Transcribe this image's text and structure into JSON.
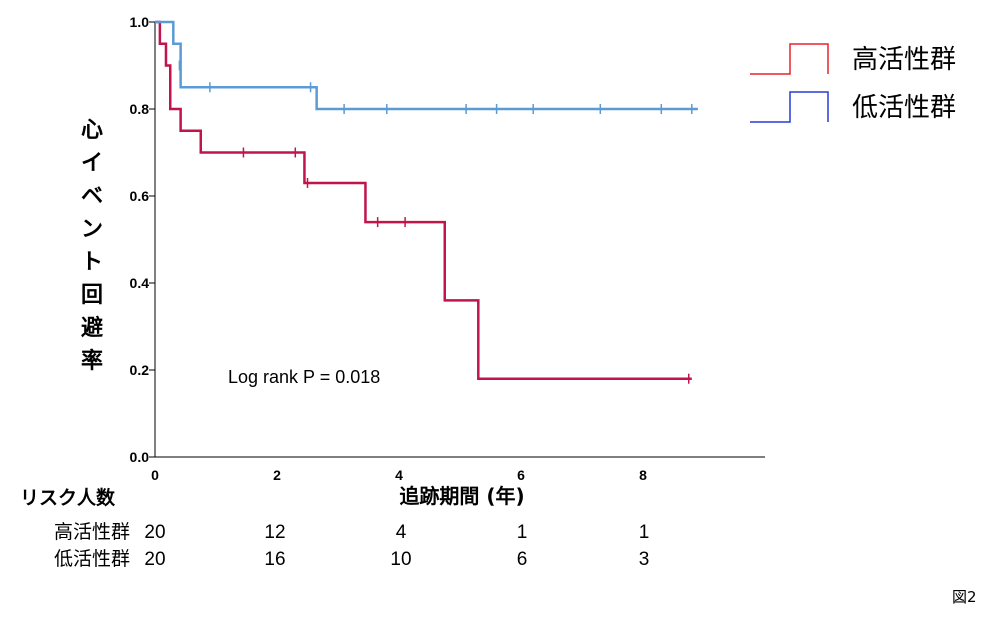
{
  "chart_data": {
    "type": "line",
    "subtype": "kaplan-meier-step",
    "ylabel": "心イベント回避率",
    "xlabel": "追跡期間 (年)",
    "xlim": [
      0,
      10
    ],
    "ylim": [
      0,
      1
    ],
    "x_ticks": [
      "0",
      "2",
      "4",
      "6",
      "8"
    ],
    "x_tick_values": [
      0,
      2,
      4,
      6,
      8
    ],
    "y_ticks": [
      "0.0",
      "0.2",
      "0.4",
      "0.6",
      "0.8",
      "1.0"
    ],
    "y_tick_values": [
      0,
      0.2,
      0.4,
      0.6,
      0.8,
      1.0
    ],
    "grid": false,
    "legend_position": "top-right",
    "annotation": "Log rank P = 0.018",
    "series": [
      {
        "name": "高活性群",
        "color": "#c0144b",
        "legend_color": "#e8202a",
        "steps": [
          [
            0,
            1.0
          ],
          [
            0.08,
            0.95
          ],
          [
            0.18,
            0.9
          ],
          [
            0.25,
            0.8
          ],
          [
            0.42,
            0.75
          ],
          [
            0.75,
            0.7
          ],
          [
            2.45,
            0.63
          ],
          [
            3.45,
            0.54
          ],
          [
            4.75,
            0.36
          ],
          [
            5.3,
            0.18
          ],
          [
            8.8,
            0.18
          ]
        ],
        "censored": [
          [
            1.45,
            0.7
          ],
          [
            2.3,
            0.7
          ],
          [
            2.5,
            0.63
          ],
          [
            3.65,
            0.54
          ],
          [
            4.1,
            0.54
          ],
          [
            8.75,
            0.18
          ]
        ]
      },
      {
        "name": "低活性群",
        "color": "#5b9bd5",
        "legend_color": "#2a3bd6",
        "steps": [
          [
            0,
            1.0
          ],
          [
            0.3,
            0.95
          ],
          [
            0.42,
            0.85
          ],
          [
            2.65,
            0.8
          ],
          [
            8.9,
            0.8
          ]
        ],
        "censored": [
          [
            0.4,
            0.9
          ],
          [
            0.9,
            0.85
          ],
          [
            2.55,
            0.85
          ],
          [
            3.1,
            0.8
          ],
          [
            3.8,
            0.8
          ],
          [
            5.1,
            0.8
          ],
          [
            5.6,
            0.8
          ],
          [
            6.2,
            0.8
          ],
          [
            7.3,
            0.8
          ],
          [
            8.3,
            0.8
          ],
          [
            8.8,
            0.8
          ]
        ]
      }
    ]
  },
  "risk_table": {
    "title": "リスク人数",
    "rows": [
      {
        "group": "高活性群",
        "values": [
          "20",
          "12",
          "4",
          "1",
          "1"
        ]
      },
      {
        "group": "低活性群",
        "values": [
          "20",
          "16",
          "10",
          "6",
          "3"
        ]
      }
    ]
  },
  "figure_label": "図2"
}
